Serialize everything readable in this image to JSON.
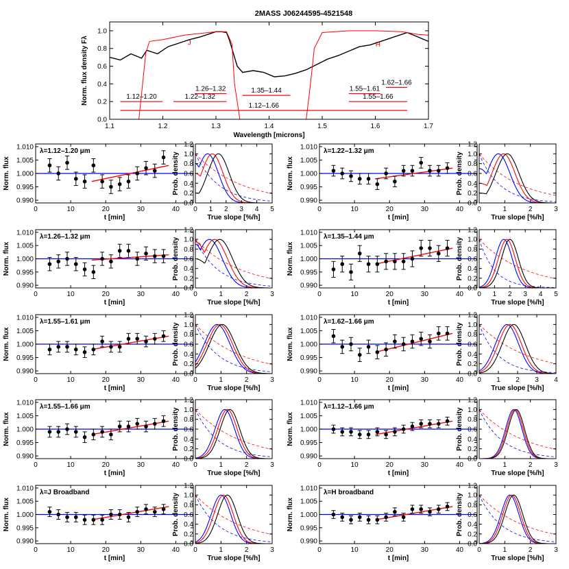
{
  "chart_data": [
    {
      "type": "line",
      "panel": "spectrum",
      "title": "2MASS J06244595-4521548",
      "xlabel": "Wavelength [microns]",
      "ylabel": "Norm. flux density Fλ",
      "xlim": [
        1.1,
        1.7
      ],
      "ylim": [
        0.0,
        1.1
      ],
      "xticks": [
        1.1,
        1.2,
        1.3,
        1.4,
        1.5,
        1.6,
        1.7
      ],
      "yticks": [
        0.0,
        0.2,
        0.4,
        0.6,
        0.8,
        1.0
      ],
      "series": [
        {
          "color": "#000000",
          "x": [
            1.1,
            1.12,
            1.14,
            1.16,
            1.17,
            1.19,
            1.21,
            1.23,
            1.25,
            1.27,
            1.29,
            1.3,
            1.31,
            1.32,
            1.325,
            1.33,
            1.34,
            1.35,
            1.37,
            1.39,
            1.41,
            1.43,
            1.45,
            1.47,
            1.49,
            1.51,
            1.53,
            1.55,
            1.57,
            1.59,
            1.61,
            1.63,
            1.65,
            1.66,
            1.68,
            1.7
          ],
          "y": [
            0.7,
            0.67,
            0.74,
            0.69,
            0.78,
            0.74,
            0.82,
            0.86,
            0.9,
            0.93,
            0.97,
            0.99,
            0.99,
            0.98,
            0.9,
            0.8,
            0.6,
            0.53,
            0.55,
            0.53,
            0.48,
            0.49,
            0.52,
            0.56,
            0.62,
            0.68,
            0.72,
            0.77,
            0.82,
            0.84,
            0.88,
            0.92,
            0.96,
            0.98,
            0.93,
            0.88
          ]
        },
        {
          "color": "#ff0000",
          "x": [
            1.1,
            1.155,
            1.162,
            1.168,
            1.175,
            1.2,
            1.24,
            1.3,
            1.32,
            1.33,
            1.335,
            1.345,
            1.4,
            1.47,
            1.478,
            1.485,
            1.5,
            1.55,
            1.6,
            1.65,
            1.68,
            1.7
          ],
          "y": [
            0.0,
            0.0,
            0.4,
            0.75,
            0.88,
            0.9,
            0.95,
            0.99,
            0.99,
            0.85,
            0.4,
            0.0,
            0.0,
            0.0,
            0.4,
            0.8,
            0.98,
            1.0,
            1.0,
            0.99,
            0.96,
            0.95
          ]
        }
      ],
      "bands": [
        {
          "label": "J",
          "x": 1.25,
          "y": 0.84
        },
        {
          "label": "H",
          "x": 1.605,
          "y": 0.82
        }
      ],
      "ranges": [
        {
          "label": "1.12–1.20",
          "x": [
            1.12,
            1.2
          ],
          "y": 0.2
        },
        {
          "label": "1.22–1.32",
          "x": [
            1.22,
            1.32
          ],
          "y": 0.2
        },
        {
          "label": "1.26–1.32",
          "x": [
            1.26,
            1.32
          ],
          "y": 0.29
        },
        {
          "label": "1.35–1.44",
          "x": [
            1.35,
            1.44
          ],
          "y": 0.27
        },
        {
          "label": "1.55–1.61",
          "x": [
            1.55,
            1.61
          ],
          "y": 0.29
        },
        {
          "label": "1.62–1.66",
          "x": [
            1.62,
            1.66
          ],
          "y": 0.36
        },
        {
          "label": "1.55–1.66",
          "x": [
            1.55,
            1.66
          ],
          "y": 0.2
        },
        {
          "label": "1.12–1.66",
          "x": [
            1.12,
            1.66
          ],
          "y": 0.1
        }
      ]
    },
    {
      "type": "scatter",
      "panel": "light-curves",
      "xlabel": "t [min]",
      "ylabel": "Norm. flux",
      "xlim": [
        0,
        45
      ],
      "ylim": [
        0.989,
        1.011
      ],
      "xticks": [
        0,
        10,
        20,
        30,
        40
      ],
      "yticks": [
        0.99,
        0.995,
        1.0,
        1.005,
        1.01
      ],
      "t": [
        4,
        6.5,
        9,
        11.5,
        14,
        16.5,
        19,
        21.5,
        24,
        26.5,
        29,
        31.5,
        34,
        36.5
      ],
      "reference_level": 1.0,
      "series": [
        {
          "name": "λ=1.12–1.20 μm",
          "y": [
            1.003,
            1.0,
            1.004,
            0.998,
            0.997,
            1.003,
            0.997,
            0.995,
            0.996,
            0.997,
            1.0,
            1.002,
            1.001,
            1.006
          ],
          "err": 0.0025,
          "fit": {
            "t0": 16,
            "t1": 38,
            "y0": 0.997,
            "y1": 1.003
          }
        },
        {
          "name": "λ=1.22–1.32 μm",
          "y": [
            1.001,
            1.0,
            0.999,
            0.998,
            0.998,
            0.996,
            1.0,
            0.997,
            1.001,
            1.001,
            1.004,
            1.001,
            1.001,
            1.002
          ],
          "err": 0.002,
          "fit": {
            "t0": 16,
            "t1": 38,
            "y0": 0.998,
            "y1": 1.002
          }
        },
        {
          "name": "λ=1.26–1.32 μm",
          "y": [
            0.998,
            0.999,
            1.0,
            0.998,
            0.996,
            0.995,
            1.0,
            0.999,
            1.003,
            1.003,
            1.0,
            1.002,
            1.001,
            1.001
          ],
          "err": 0.0025,
          "fit": {
            "t0": 16,
            "t1": 38,
            "y0": 0.9995,
            "y1": 1.0015
          }
        },
        {
          "name": "λ=1.35–1.44 μm",
          "y": [
            0.996,
            0.998,
            0.995,
            1.002,
            0.998,
            0.998,
            0.999,
            0.999,
            0.999,
            1.0,
            1.004,
            1.004,
            1.002,
            1.004
          ],
          "err": 0.003,
          "fit": {
            "t0": 16,
            "t1": 38,
            "y0": 0.998,
            "y1": 1.004
          }
        },
        {
          "name": "λ=1.55–1.61 μm",
          "y": [
            0.998,
            0.999,
            0.999,
            0.998,
            0.997,
            0.998,
            1.001,
            0.999,
            0.999,
            1.002,
            1.002,
            1.001,
            1.002,
            1.003
          ],
          "err": 0.002,
          "fit": {
            "t0": 16,
            "t1": 38,
            "y0": 0.998,
            "y1": 1.003
          }
        },
        {
          "name": "λ=1.62–1.66 μm",
          "y": [
            1.003,
            0.999,
            1.0,
            0.996,
            0.999,
            0.997,
            0.998,
            1.001,
            1.0,
            1.001,
            1.002,
            1.001,
            1.004,
            1.004
          ],
          "err": 0.0025,
          "fit": {
            "t0": 16,
            "t1": 38,
            "y0": 0.997,
            "y1": 1.004
          }
        },
        {
          "name": "λ=1.55–1.66 μm",
          "y": [
            0.999,
            0.999,
            1.0,
            0.999,
            0.997,
            0.998,
            0.999,
            0.998,
            1.001,
            1.001,
            1.002,
            1.001,
            1.002,
            1.003
          ],
          "err": 0.002,
          "fit": {
            "t0": 16,
            "t1": 38,
            "y0": 0.998,
            "y1": 1.003
          }
        },
        {
          "name": "λ=1.12–1.66 μm",
          "y": [
            1.0,
            0.999,
            0.999,
            0.998,
            0.998,
            0.999,
            0.998,
            0.999,
            1.0,
            1.001,
            1.002,
            1.002,
            1.002,
            1.003
          ],
          "err": 0.0015,
          "fit": {
            "t0": 16,
            "t1": 38,
            "y0": 0.998,
            "y1": 1.003
          }
        },
        {
          "name": "λ=J Broadband",
          "y": [
            1.001,
            1.0,
            0.999,
            0.999,
            0.998,
            0.998,
            0.998,
            1.0,
            1.0,
            0.999,
            1.001,
            1.002,
            1.001,
            1.002
          ],
          "err": 0.0018,
          "fit": {
            "t0": 16,
            "t1": 38,
            "y0": 0.998,
            "y1": 1.003
          }
        },
        {
          "name": "λ=H broadband",
          "y": [
            1.0,
            0.999,
            0.998,
            0.999,
            0.998,
            0.998,
            0.999,
            1.001,
            0.999,
            1.002,
            1.002,
            1.001,
            1.002,
            1.003
          ],
          "err": 0.0015,
          "fit": {
            "t0": 16,
            "t1": 38,
            "y0": 0.998,
            "y1": 1.003
          }
        }
      ]
    },
    {
      "type": "line",
      "panel": "slope-posteriors",
      "xlabel": "True slope [%/h]",
      "ylabel": "Prob. density",
      "ylim": [
        0.0,
        1.2
      ],
      "yticks": [
        0.0,
        0.2,
        0.4,
        0.6,
        0.8,
        1.0,
        1.2
      ],
      "curve_colors": [
        "#0000ff",
        "#ff0000",
        "#000000"
      ],
      "panels": [
        {
          "xmax": 5,
          "xticks": [
            0,
            1,
            2,
            3,
            4,
            5
          ],
          "peaks": [
            0.8,
            1.1,
            1.5
          ],
          "width": 0.7,
          "floor": [
            0.8,
            0.6,
            0.2
          ],
          "prior_scale": [
            1.5,
            3.0
          ]
        },
        {
          "xmax": 3,
          "xticks": [
            0,
            1,
            2,
            3
          ],
          "peaks": [
            0.75,
            0.95,
            1.1
          ],
          "width": 0.45,
          "floor": [
            0.7,
            0.4,
            0.2
          ],
          "prior_scale": [
            0.8,
            1.6
          ]
        },
        {
          "xmax": 3,
          "xticks": [
            0,
            1,
            2,
            3
          ],
          "peaks": [
            0.55,
            0.75,
            0.95
          ],
          "width": 0.5,
          "floor": [
            0.9,
            0.95,
            0.6
          ],
          "prior_scale": [
            0.9,
            1.8
          ]
        },
        {
          "xmax": 5,
          "xticks": [
            0,
            1,
            2,
            3,
            4,
            5
          ],
          "peaks": [
            1.6,
            1.8,
            2.0
          ],
          "width": 0.55,
          "floor": [
            0,
            0,
            0
          ],
          "prior_scale": [
            1.0,
            3.0
          ]
        },
        {
          "xmax": 3,
          "xticks": [
            0,
            1,
            2,
            3
          ],
          "peaks": [
            0.85,
            0.95,
            1.05
          ],
          "width": 0.5,
          "floor": [
            0,
            0,
            0
          ],
          "prior_scale": [
            0.9,
            1.8
          ]
        },
        {
          "xmax": 4,
          "xticks": [
            0,
            1,
            2,
            3,
            4
          ],
          "peaks": [
            1.45,
            1.6,
            1.8
          ],
          "width": 0.6,
          "floor": [
            0,
            0,
            0
          ],
          "prior_scale": [
            1.0,
            2.5
          ]
        },
        {
          "xmax": 3,
          "xticks": [
            0,
            1,
            2,
            3
          ],
          "peaks": [
            1.15,
            1.25,
            1.35
          ],
          "width": 0.38,
          "floor": [
            0,
            0,
            0
          ],
          "prior_scale": [
            0.9,
            1.8
          ]
        },
        {
          "xmax": 3,
          "xticks": [
            0,
            1,
            2,
            3
          ],
          "peaks": [
            1.35,
            1.4,
            1.45
          ],
          "width": 0.32,
          "floor": [
            0,
            0,
            0
          ],
          "prior_scale": [
            0.9,
            1.8
          ]
        },
        {
          "xmax": 3,
          "xticks": [
            0,
            1,
            2,
            3
          ],
          "peaks": [
            1.0,
            1.1,
            1.25
          ],
          "width": 0.38,
          "floor": [
            0,
            0,
            0
          ],
          "prior_scale": [
            0.9,
            1.8
          ]
        },
        {
          "xmax": 3,
          "xticks": [
            0,
            1,
            2,
            3
          ],
          "peaks": [
            1.2,
            1.27,
            1.35
          ],
          "width": 0.35,
          "floor": [
            0,
            0,
            0
          ],
          "prior_scale": [
            0.9,
            1.8
          ]
        }
      ]
    }
  ]
}
